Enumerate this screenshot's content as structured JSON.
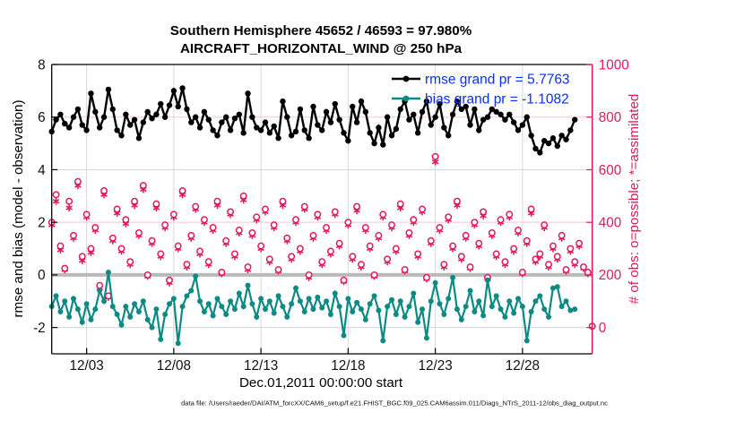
{
  "title": {
    "line1": "Southern Hemisphere 45652 / 46593 = 97.980%",
    "line2": "AIRCRAFT_HORIZONTAL_WIND @ 250 hPa"
  },
  "footer": {
    "text": "data file: /Users/raeder/DAI/ATM_forcXX/CAM6_setup/f.e21.FHIST_BGC.f09_025.CAM6assim.011/Diags_NTrS_2011-12/obs_diag_output.nc"
  },
  "colors": {
    "rmse": "#000000",
    "bias": "#0e8a84",
    "obs": "#e2175c",
    "legend_text": "#0a2ff0",
    "grid_vertical": "#d9d9d9",
    "grid_horizontal": "#f4c6d7",
    "zero_line": "#b9b9b9",
    "axis_box": "#000000"
  },
  "chart_data": {
    "type": "line",
    "title": "Southern Hemisphere 45652 / 46593 = 97.980% | AIRCRAFT_HORIZONTAL_WIND @ 250 hPa",
    "xlabel": "Dec.01,2011 00:00:00 start",
    "ylabel_left": "rmse and bias (model - observation)",
    "ylabel_right": "# of obs: o=possible; *=assimilated",
    "x_note": "day 0 = Dec 01 2011 00:00 UTC, 6-hourly bins, day 31 = Jan 01 2012",
    "x_start_day": 0,
    "x_step_days": 0.25,
    "xlim": [
      0,
      31
    ],
    "ylim_left": [
      -3,
      8
    ],
    "ylim_right": [
      -100,
      1000
    ],
    "grid": true,
    "legend_position": "upper-right-inside",
    "xticks": [
      {
        "day": 2,
        "label": "12/03"
      },
      {
        "day": 7,
        "label": "12/08"
      },
      {
        "day": 12,
        "label": "12/13"
      },
      {
        "day": 17,
        "label": "12/18"
      },
      {
        "day": 22,
        "label": "12/23"
      },
      {
        "day": 27,
        "label": "12/28"
      }
    ],
    "yticks_left": [
      8,
      6,
      4,
      2,
      0,
      -2
    ],
    "yticks_right": [
      1000,
      800,
      600,
      400,
      200,
      0
    ],
    "grand_stats": {
      "rmse_grand_pr": 5.7763,
      "bias_grand_pr": -1.1082,
      "obs_possible_total": 46593,
      "obs_assimilated_total": 45652,
      "assimilated_pct": 97.98
    },
    "series": [
      {
        "name": "rmse grand pr = 5.7763",
        "axis": "left",
        "marker": "filled-circle",
        "color": "#000000",
        "values": [
          5.45,
          5.9,
          6.1,
          5.75,
          5.6,
          6.0,
          6.3,
          5.7,
          5.5,
          6.9,
          6.2,
          5.6,
          6.0,
          7.05,
          6.3,
          5.5,
          5.3,
          6.1,
          5.7,
          5.9,
          5.2,
          5.8,
          6.2,
          5.95,
          6.1,
          6.5,
          6.0,
          6.45,
          7.0,
          6.4,
          7.1,
          6.3,
          5.8,
          6.0,
          5.6,
          6.2,
          5.9,
          5.5,
          5.3,
          5.8,
          6.0,
          5.5,
          5.95,
          6.1,
          5.4,
          6.9,
          6.0,
          5.6,
          5.5,
          5.8,
          5.4,
          5.65,
          5.2,
          6.6,
          6.0,
          5.3,
          5.45,
          6.3,
          5.5,
          5.2,
          6.4,
          5.7,
          5.5,
          6.2,
          5.8,
          6.5,
          5.9,
          5.4,
          5.1,
          6.4,
          5.8,
          6.6,
          6.2,
          5.4,
          5.0,
          5.6,
          4.95,
          6.0,
          5.3,
          5.55,
          6.3,
          6.6,
          5.9,
          6.1,
          5.4,
          6.2,
          6.6,
          5.7,
          6.0,
          6.5,
          5.6,
          5.3,
          6.1,
          6.6,
          6.3,
          6.4,
          5.7,
          6.3,
          5.5,
          5.9,
          6.0,
          6.3,
          6.2,
          6.1,
          5.9,
          6.1,
          5.8,
          5.5,
          5.7,
          6.0,
          5.3,
          4.8,
          4.65,
          5.1,
          5.0,
          5.2,
          4.9,
          5.3,
          5.15,
          5.5,
          5.9
        ]
      },
      {
        "name": "bias grand pr = -1.1082",
        "axis": "left",
        "marker": "filled-circle",
        "color": "#0e8a84",
        "values": [
          -1.2,
          -0.8,
          -1.4,
          -1.0,
          -1.6,
          -0.9,
          -1.3,
          -1.8,
          -1.1,
          -1.7,
          -1.3,
          -0.6,
          -1.0,
          0.1,
          -1.2,
          -1.5,
          -1.9,
          -1.2,
          -1.6,
          -1.1,
          -1.4,
          -1.0,
          -1.7,
          -2.0,
          -1.3,
          -2.45,
          -1.5,
          -1.1,
          -0.9,
          -2.6,
          -1.2,
          -0.8,
          -0.6,
          -0.05,
          -1.0,
          -1.4,
          -1.1,
          -1.55,
          -0.9,
          -1.2,
          -1.5,
          -1.0,
          -1.3,
          -0.7,
          -1.2,
          -0.4,
          -1.1,
          -1.6,
          -0.9,
          -1.3,
          -1.0,
          -1.45,
          -0.8,
          -1.2,
          -1.6,
          -1.1,
          -0.5,
          -1.0,
          -1.4,
          -0.9,
          -1.3,
          -0.85,
          -1.25,
          -1.0,
          -1.5,
          -0.7,
          -1.2,
          -2.3,
          -0.9,
          -1.4,
          -1.05,
          -1.3,
          -1.7,
          -1.1,
          -0.8,
          -1.35,
          -2.5,
          -1.2,
          -0.95,
          -1.5,
          -1.0,
          -1.6,
          -1.2,
          -0.7,
          -1.8,
          -1.3,
          -2.4,
          -1.0,
          -0.3,
          -1.1,
          -1.5,
          -0.9,
          -0.1,
          -1.3,
          -1.7,
          -1.2,
          -0.6,
          -1.4,
          -1.0,
          -1.55,
          -0.2,
          -1.2,
          -0.8,
          -1.3,
          -1.6,
          -1.0,
          -1.45,
          -0.9,
          -1.2,
          -2.5,
          -1.4,
          -1.0,
          -0.8,
          -1.3,
          -1.6,
          -0.5,
          -0.45,
          -1.2,
          -1.0,
          -1.35,
          -1.3
        ]
      },
      {
        "name": "obs possible (o)",
        "axis": "right",
        "marker": "open-circle",
        "color": "#e2175c",
        "values": [
          400,
          505,
          310,
          225,
          480,
          350,
          555,
          270,
          430,
          300,
          380,
          160,
          520,
          120,
          340,
          450,
          300,
          410,
          250,
          480,
          360,
          540,
          200,
          330,
          470,
          280,
          390,
          180,
          430,
          310,
          520,
          240,
          350,
          460,
          290,
          410,
          250,
          380,
          480,
          210,
          330,
          440,
          280,
          370,
          500,
          230,
          360,
          420,
          310,
          450,
          260,
          390,
          220,
          480,
          340,
          270,
          410,
          300,
          460,
          200,
          350,
          430,
          250,
          380,
          290,
          440,
          320,
          180,
          400,
          270,
          460,
          240,
          380,
          310,
          200,
          350,
          430,
          260,
          390,
          300,
          470,
          220,
          360,
          410,
          280,
          450,
          190,
          330,
          650,
          380,
          240,
          420,
          310,
          480,
          270,
          350,
          230,
          400,
          320,
          440,
          190,
          360,
          280,
          410,
          250,
          430,
          300,
          370,
          210,
          330,
          450,
          260,
          280,
          390,
          240,
          310,
          270,
          350,
          220,
          300,
          250,
          320,
          230,
          210,
          5
        ]
      },
      {
        "name": "obs assimilated (*)",
        "axis": "right",
        "marker": "asterisk",
        "color": "#e2175c",
        "values": [
          390,
          480,
          295,
          220,
          455,
          340,
          540,
          255,
          420,
          285,
          370,
          150,
          505,
          115,
          330,
          435,
          290,
          395,
          240,
          465,
          350,
          525,
          195,
          320,
          455,
          270,
          380,
          170,
          420,
          300,
          505,
          230,
          340,
          450,
          280,
          400,
          240,
          370,
          465,
          205,
          320,
          430,
          270,
          360,
          485,
          220,
          350,
          410,
          300,
          440,
          250,
          380,
          215,
          465,
          330,
          260,
          400,
          290,
          450,
          190,
          340,
          420,
          240,
          370,
          280,
          430,
          310,
          175,
          390,
          260,
          445,
          230,
          370,
          300,
          195,
          340,
          420,
          250,
          380,
          290,
          455,
          215,
          350,
          400,
          270,
          440,
          185,
          320,
          630,
          370,
          230,
          410,
          300,
          465,
          260,
          340,
          225,
          390,
          310,
          425,
          185,
          350,
          270,
          400,
          240,
          420,
          290,
          360,
          205,
          320,
          435,
          250,
          270,
          380,
          230,
          300,
          260,
          340,
          215,
          290,
          240,
          310,
          225,
          205,
          5
        ]
      }
    ]
  }
}
